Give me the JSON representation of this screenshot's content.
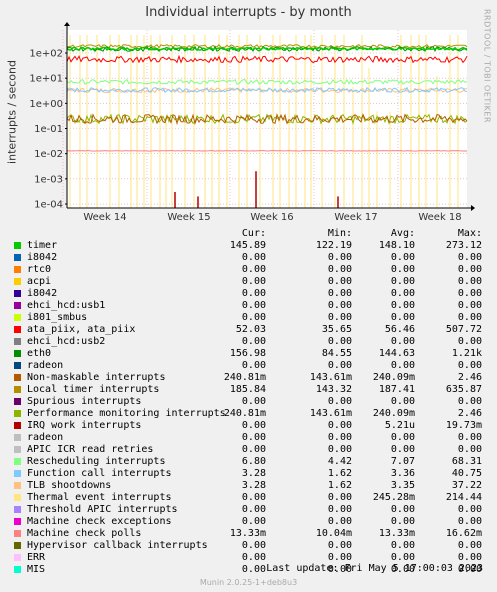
{
  "chart_data": {
    "type": "line",
    "title": "Individual interrupts - by month",
    "ylabel": "interrupts / second",
    "y_scale": "log",
    "ylim": [
      0.0001,
      300
    ],
    "y_ticks": [
      "1e+02",
      "1e+01",
      "1e+00",
      "1e-01",
      "1e-02",
      "1e-03",
      "1e-04"
    ],
    "x_ticks": [
      "Week 14",
      "Week 15",
      "Week 16",
      "Week 17",
      "Week 18"
    ],
    "grid": true,
    "legend_placement": "below",
    "columns": [
      "Cur:",
      "Min:",
      "Avg:",
      "Max:"
    ],
    "series": [
      {
        "name": "timer",
        "color": "#00cc00",
        "cur": "145.89",
        "min": "122.19",
        "avg": "148.10",
        "max": "273.12"
      },
      {
        "name": "i8042",
        "color": "#0066b3",
        "cur": "0.00",
        "min": "0.00",
        "avg": "0.00",
        "max": "0.00"
      },
      {
        "name": "rtc0",
        "color": "#ff8000",
        "cur": "0.00",
        "min": "0.00",
        "avg": "0.00",
        "max": "0.00"
      },
      {
        "name": "acpi",
        "color": "#ffcc00",
        "cur": "0.00",
        "min": "0.00",
        "avg": "0.00",
        "max": "0.00"
      },
      {
        "name": "i8042",
        "color": "#330099",
        "cur": "0.00",
        "min": "0.00",
        "avg": "0.00",
        "max": "0.00"
      },
      {
        "name": "ehci_hcd:usb1",
        "color": "#990099",
        "cur": "0.00",
        "min": "0.00",
        "avg": "0.00",
        "max": "0.00"
      },
      {
        "name": "i801_smbus",
        "color": "#ccff00",
        "cur": "0.00",
        "min": "0.00",
        "avg": "0.00",
        "max": "0.00"
      },
      {
        "name": "ata_piix, ata_piix",
        "color": "#ff0000",
        "cur": "52.03",
        "min": "35.65",
        "avg": "56.46",
        "max": "507.72"
      },
      {
        "name": "ehci_hcd:usb2",
        "color": "#808080",
        "cur": "0.00",
        "min": "0.00",
        "avg": "0.00",
        "max": "0.00"
      },
      {
        "name": "eth0",
        "color": "#008f00",
        "cur": "156.98",
        "min": "84.55",
        "avg": "144.63",
        "max": "1.21k"
      },
      {
        "name": "radeon",
        "color": "#00487d",
        "cur": "0.00",
        "min": "0.00",
        "avg": "0.00",
        "max": "0.00"
      },
      {
        "name": "Non-maskable interrupts",
        "color": "#b35a00",
        "cur": "240.81m",
        "min": "143.61m",
        "avg": "240.09m",
        "max": "2.46"
      },
      {
        "name": "Local timer interrupts",
        "color": "#b38f00",
        "cur": "185.84",
        "min": "143.32",
        "avg": "187.41",
        "max": "635.87"
      },
      {
        "name": "Spurious interrupts",
        "color": "#6b006b",
        "cur": "0.00",
        "min": "0.00",
        "avg": "0.00",
        "max": "0.00"
      },
      {
        "name": "Performance monitoring interrupts",
        "color": "#8fb300",
        "cur": "240.81m",
        "min": "143.61m",
        "avg": "240.09m",
        "max": "2.46"
      },
      {
        "name": "IRQ work interrupts",
        "color": "#b30000",
        "cur": "0.00",
        "min": "0.00",
        "avg": "5.21u",
        "max": "19.73m"
      },
      {
        "name": "radeon",
        "color": "#bebebe",
        "cur": "0.00",
        "min": "0.00",
        "avg": "0.00",
        "max": "0.00"
      },
      {
        "name": "APIC ICR read retries",
        "color": "#bfbfbf",
        "cur": "0.00",
        "min": "0.00",
        "avg": "0.00",
        "max": "0.00"
      },
      {
        "name": "Rescheduling interrupts",
        "color": "#80ff80",
        "cur": "6.80",
        "min": "4.42",
        "avg": "7.07",
        "max": "68.31"
      },
      {
        "name": "Function call interrupts",
        "color": "#80c9ff",
        "cur": "3.28",
        "min": "1.62",
        "avg": "3.36",
        "max": "40.75"
      },
      {
        "name": "TLB shootdowns",
        "color": "#ffc080",
        "cur": "3.28",
        "min": "1.62",
        "avg": "3.35",
        "max": "37.22"
      },
      {
        "name": "Thermal event interrupts",
        "color": "#ffe680",
        "cur": "0.00",
        "min": "0.00",
        "avg": "245.28m",
        "max": "214.44"
      },
      {
        "name": "Threshold APIC interrupts",
        "color": "#aa80ff",
        "cur": "0.00",
        "min": "0.00",
        "avg": "0.00",
        "max": "0.00"
      },
      {
        "name": "Machine check exceptions",
        "color": "#ee00cc",
        "cur": "0.00",
        "min": "0.00",
        "avg": "0.00",
        "max": "0.00"
      },
      {
        "name": "Machine check polls",
        "color": "#ff8080",
        "cur": "13.33m",
        "min": "10.04m",
        "avg": "13.33m",
        "max": "16.62m"
      },
      {
        "name": "Hypervisor callback interrupts",
        "color": "#666600",
        "cur": "0.00",
        "min": "0.00",
        "avg": "0.00",
        "max": "0.00"
      },
      {
        "name": "ERR",
        "color": "#ffbfff",
        "cur": "0.00",
        "min": "0.00",
        "avg": "0.00",
        "max": "0.00"
      },
      {
        "name": "MIS",
        "color": "#00ffcc",
        "cur": "0.00",
        "min": "0.00",
        "avg": "0.00",
        "max": "0.00"
      }
    ]
  },
  "watermark": "RRDTOOL / TOBI OETIKER",
  "last_update": "Last update:  Fri May  5 17:00:03 2023",
  "version": "Munin 2.0.25-1+deb8u3"
}
